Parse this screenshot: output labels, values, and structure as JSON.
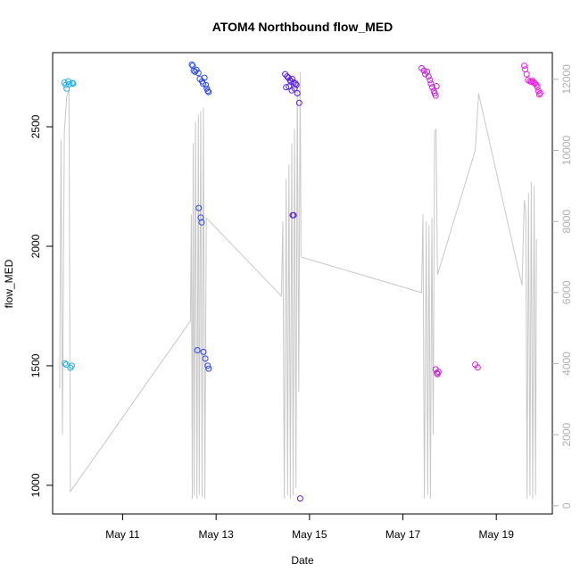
{
  "chart_data": {
    "type": "scatter",
    "title": "ATOM4 Northbound flow_MED",
    "xlabel": "Date",
    "ylabel": "flow_MED",
    "x_tick_labels": [
      "May 11",
      "May 13",
      "May 15",
      "May 17",
      "May 19"
    ],
    "x_tick_days": [
      11,
      13,
      15,
      17,
      19
    ],
    "xlim_days": [
      9.5,
      20.2
    ],
    "ylim_left": [
      880,
      2810
    ],
    "ylim_right": [
      -230,
      12750
    ],
    "y_left_ticks": [
      1000,
      1500,
      2000,
      2500
    ],
    "y_right_ticks": [
      0,
      2000,
      4000,
      6000,
      8000,
      10000,
      12000
    ],
    "grid": false,
    "colors": {
      "line": "#c8c8c8",
      "axis": "#000000",
      "right_axis": "#b0b0b0",
      "point_gradient": [
        "#1fb4e8",
        "#1f6cf0",
        "#3a1ee6",
        "#8a1ee0",
        "#d020d8",
        "#f21ee0"
      ]
    },
    "points": [
      {
        "day": 9.75,
        "flow_MED": 2685
      },
      {
        "day": 9.78,
        "flow_MED": 2675
      },
      {
        "day": 9.8,
        "flow_MED": 2660
      },
      {
        "day": 9.83,
        "flow_MED": 2690
      },
      {
        "day": 9.86,
        "flow_MED": 2678
      },
      {
        "day": 9.92,
        "flow_MED": 2683
      },
      {
        "day": 9.94,
        "flow_MED": 2680
      },
      {
        "day": 9.76,
        "flow_MED": 1510
      },
      {
        "day": 9.79,
        "flow_MED": 1505
      },
      {
        "day": 9.88,
        "flow_MED": 1492
      },
      {
        "day": 9.91,
        "flow_MED": 1500
      },
      {
        "day": 12.48,
        "flow_MED": 2760
      },
      {
        "day": 12.5,
        "flow_MED": 2755
      },
      {
        "day": 12.52,
        "flow_MED": 2735
      },
      {
        "day": 12.55,
        "flow_MED": 2730
      },
      {
        "day": 12.58,
        "flow_MED": 2738
      },
      {
        "day": 12.62,
        "flow_MED": 2725
      },
      {
        "day": 12.65,
        "flow_MED": 2700
      },
      {
        "day": 12.7,
        "flow_MED": 2690
      },
      {
        "day": 12.72,
        "flow_MED": 2680
      },
      {
        "day": 12.75,
        "flow_MED": 2705
      },
      {
        "day": 12.78,
        "flow_MED": 2675
      },
      {
        "day": 12.8,
        "flow_MED": 2660
      },
      {
        "day": 12.82,
        "flow_MED": 2650
      },
      {
        "day": 12.84,
        "flow_MED": 2645
      },
      {
        "day": 12.63,
        "flow_MED": 2160
      },
      {
        "day": 12.67,
        "flow_MED": 2120
      },
      {
        "day": 12.69,
        "flow_MED": 2100
      },
      {
        "day": 12.6,
        "flow_MED": 1565
      },
      {
        "day": 12.73,
        "flow_MED": 1558
      },
      {
        "day": 12.77,
        "flow_MED": 1530
      },
      {
        "day": 12.82,
        "flow_MED": 1500
      },
      {
        "day": 12.84,
        "flow_MED": 1488
      },
      {
        "day": 14.48,
        "flow_MED": 2720
      },
      {
        "day": 14.52,
        "flow_MED": 2710
      },
      {
        "day": 14.55,
        "flow_MED": 2705
      },
      {
        "day": 14.58,
        "flow_MED": 2695
      },
      {
        "day": 14.6,
        "flow_MED": 2690
      },
      {
        "day": 14.63,
        "flow_MED": 2700
      },
      {
        "day": 14.66,
        "flow_MED": 2685
      },
      {
        "day": 14.7,
        "flow_MED": 2680
      },
      {
        "day": 14.72,
        "flow_MED": 2675
      },
      {
        "day": 14.5,
        "flow_MED": 2665
      },
      {
        "day": 14.56,
        "flow_MED": 2668
      },
      {
        "day": 14.62,
        "flow_MED": 2652
      },
      {
        "day": 14.68,
        "flow_MED": 2660
      },
      {
        "day": 14.74,
        "flow_MED": 2640
      },
      {
        "day": 14.78,
        "flow_MED": 2600
      },
      {
        "day": 14.64,
        "flow_MED": 2130
      },
      {
        "day": 14.66,
        "flow_MED": 2130
      },
      {
        "day": 14.8,
        "flow_MED": 945
      },
      {
        "day": 17.4,
        "flow_MED": 2745
      },
      {
        "day": 17.45,
        "flow_MED": 2735
      },
      {
        "day": 17.48,
        "flow_MED": 2720
      },
      {
        "day": 17.52,
        "flow_MED": 2730
      },
      {
        "day": 17.55,
        "flow_MED": 2710
      },
      {
        "day": 17.58,
        "flow_MED": 2695
      },
      {
        "day": 17.6,
        "flow_MED": 2680
      },
      {
        "day": 17.63,
        "flow_MED": 2665
      },
      {
        "day": 17.66,
        "flow_MED": 2650
      },
      {
        "day": 17.68,
        "flow_MED": 2640
      },
      {
        "day": 17.7,
        "flow_MED": 2630
      },
      {
        "day": 17.72,
        "flow_MED": 2670
      },
      {
        "day": 17.7,
        "flow_MED": 1485
      },
      {
        "day": 17.73,
        "flow_MED": 1470
      },
      {
        "day": 17.76,
        "flow_MED": 1475
      },
      {
        "day": 17.74,
        "flow_MED": 1465
      },
      {
        "day": 18.55,
        "flow_MED": 1505
      },
      {
        "day": 18.6,
        "flow_MED": 1493
      },
      {
        "day": 19.6,
        "flow_MED": 2755
      },
      {
        "day": 19.62,
        "flow_MED": 2740
      },
      {
        "day": 19.65,
        "flow_MED": 2720
      },
      {
        "day": 19.68,
        "flow_MED": 2695
      },
      {
        "day": 19.72,
        "flow_MED": 2690
      },
      {
        "day": 19.75,
        "flow_MED": 2688
      },
      {
        "day": 19.78,
        "flow_MED": 2692
      },
      {
        "day": 19.8,
        "flow_MED": 2685
      },
      {
        "day": 19.83,
        "flow_MED": 2680
      },
      {
        "day": 19.86,
        "flow_MED": 2675
      },
      {
        "day": 19.88,
        "flow_MED": 2665
      },
      {
        "day": 19.9,
        "flow_MED": 2650
      },
      {
        "day": 19.92,
        "flow_MED": 2635
      },
      {
        "day": 19.94,
        "flow_MED": 2640
      }
    ],
    "line_series": {
      "axis": "right",
      "points": [
        {
          "day": 9.65,
          "value": 3300
        },
        {
          "day": 9.68,
          "value": 10300
        },
        {
          "day": 9.71,
          "value": 2000
        },
        {
          "day": 9.75,
          "value": 10500
        },
        {
          "day": 9.8,
          "value": 11500
        },
        {
          "day": 9.85,
          "value": 11700
        },
        {
          "day": 9.88,
          "value": 400
        },
        {
          "day": 12.45,
          "value": 5200
        },
        {
          "day": 12.47,
          "value": 8200
        },
        {
          "day": 12.49,
          "value": 200
        },
        {
          "day": 12.51,
          "value": 10200
        },
        {
          "day": 12.53,
          "value": 300
        },
        {
          "day": 12.56,
          "value": 10800
        },
        {
          "day": 12.59,
          "value": 200
        },
        {
          "day": 12.62,
          "value": 11000
        },
        {
          "day": 12.64,
          "value": 300
        },
        {
          "day": 12.67,
          "value": 11100
        },
        {
          "day": 12.7,
          "value": 250
        },
        {
          "day": 12.73,
          "value": 11200
        },
        {
          "day": 12.76,
          "value": 200
        },
        {
          "day": 12.79,
          "value": 8100
        },
        {
          "day": 14.4,
          "value": 5900
        },
        {
          "day": 14.43,
          "value": 8000
        },
        {
          "day": 14.46,
          "value": 200
        },
        {
          "day": 14.5,
          "value": 9200
        },
        {
          "day": 14.53,
          "value": 300
        },
        {
          "day": 14.56,
          "value": 9600
        },
        {
          "day": 14.59,
          "value": 200
        },
        {
          "day": 14.62,
          "value": 10200
        },
        {
          "day": 14.65,
          "value": 300
        },
        {
          "day": 14.68,
          "value": 10600
        },
        {
          "day": 14.71,
          "value": 500
        },
        {
          "day": 14.74,
          "value": 12000
        },
        {
          "day": 14.77,
          "value": 3200
        },
        {
          "day": 14.8,
          "value": 12200
        },
        {
          "day": 14.82,
          "value": 7000
        },
        {
          "day": 17.4,
          "value": 6000
        },
        {
          "day": 17.43,
          "value": 8200
        },
        {
          "day": 17.46,
          "value": 200
        },
        {
          "day": 17.5,
          "value": 8000
        },
        {
          "day": 17.53,
          "value": 300
        },
        {
          "day": 17.56,
          "value": 7900
        },
        {
          "day": 17.59,
          "value": 200
        },
        {
          "day": 17.62,
          "value": 8100
        },
        {
          "day": 17.65,
          "value": 2000
        },
        {
          "day": 17.68,
          "value": 10500
        },
        {
          "day": 17.71,
          "value": 10600
        },
        {
          "day": 17.74,
          "value": 6500
        },
        {
          "day": 18.55,
          "value": 10000
        },
        {
          "day": 18.62,
          "value": 11600
        },
        {
          "day": 19.55,
          "value": 6200
        },
        {
          "day": 19.6,
          "value": 8600
        },
        {
          "day": 19.63,
          "value": 8300
        },
        {
          "day": 19.66,
          "value": 200
        },
        {
          "day": 19.69,
          "value": 8800
        },
        {
          "day": 19.72,
          "value": 300
        },
        {
          "day": 19.75,
          "value": 9100
        },
        {
          "day": 19.78,
          "value": 200
        },
        {
          "day": 19.81,
          "value": 9000
        },
        {
          "day": 19.84,
          "value": 300
        },
        {
          "day": 19.86,
          "value": 7500
        }
      ]
    }
  }
}
